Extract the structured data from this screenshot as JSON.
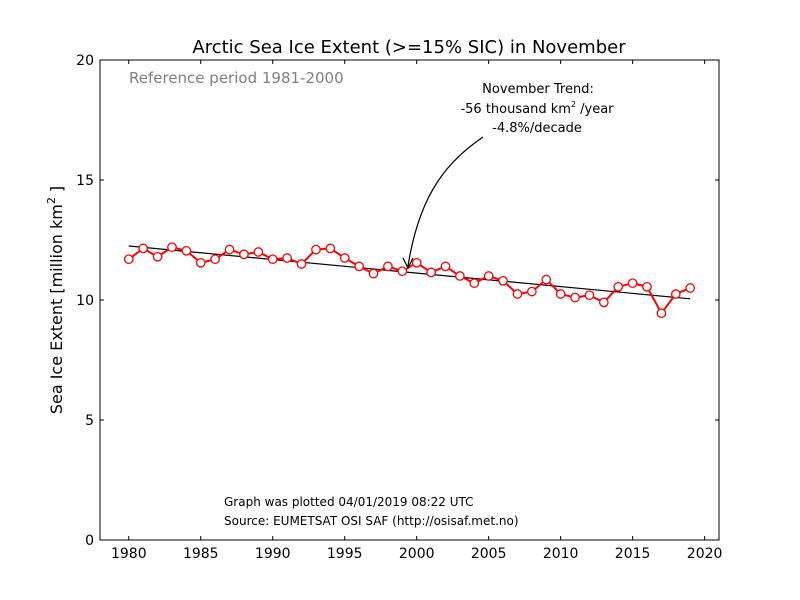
{
  "chart_data": {
    "type": "line",
    "title": "Arctic Sea Ice Extent (>=15% SIC) in November",
    "xlabel": "",
    "ylabel_main": "Sea Ice Extent [million km",
    "ylabel_sup": "2",
    "ylabel_end": " ]",
    "xlim": [
      1978,
      2021
    ],
    "ylim": [
      0,
      20
    ],
    "xticks": [
      1980,
      1985,
      1990,
      1995,
      2000,
      2005,
      2010,
      2015,
      2020
    ],
    "yticks": [
      0,
      5,
      10,
      15,
      20
    ],
    "grid": false,
    "colors": {
      "series": "#ff0000",
      "trend": "#000000",
      "reference": "#808080"
    },
    "reference_text": "Reference period 1981-2000",
    "trend_annotation": {
      "line1": "November Trend:",
      "line2_main": "-56 thousand km",
      "line2_sup": "2",
      "line2_end": " /year",
      "line3": "-4.8%/decade"
    },
    "footer": {
      "plotted": "Graph was plotted 04/01/2019 08:22 UTC",
      "source": "Source: EUMETSAT OSI SAF (http://osisaf.met.no)"
    },
    "series": [
      {
        "x": [
          1980,
          1981,
          1982,
          1983,
          1984,
          1985,
          1986,
          1987,
          1988,
          1989,
          1990,
          1991,
          1992,
          1993,
          1994,
          1995,
          1996,
          1997,
          1998,
          1999,
          2000,
          2001,
          2002,
          2003,
          2004,
          2005,
          2006,
          2007,
          2008,
          2009,
          2010,
          2011,
          2012,
          2013,
          2014,
          2015,
          2016,
          2017,
          2018,
          2019
        ],
        "values": [
          11.7,
          12.15,
          11.8,
          12.2,
          12.05,
          11.55,
          11.7,
          12.1,
          11.9,
          12.0,
          11.7,
          11.75,
          11.5,
          12.1,
          12.15,
          11.75,
          11.4,
          11.1,
          11.4,
          11.2,
          11.55,
          11.15,
          11.4,
          11.0,
          10.7,
          11.0,
          10.8,
          10.25,
          10.35,
          10.85,
          10.25,
          10.1,
          10.2,
          9.9,
          10.55,
          10.7,
          10.55,
          9.45,
          10.25,
          10.5
        ]
      }
    ],
    "trend": {
      "x": [
        1980,
        2019
      ],
      "y": [
        12.25,
        10.05
      ]
    }
  }
}
